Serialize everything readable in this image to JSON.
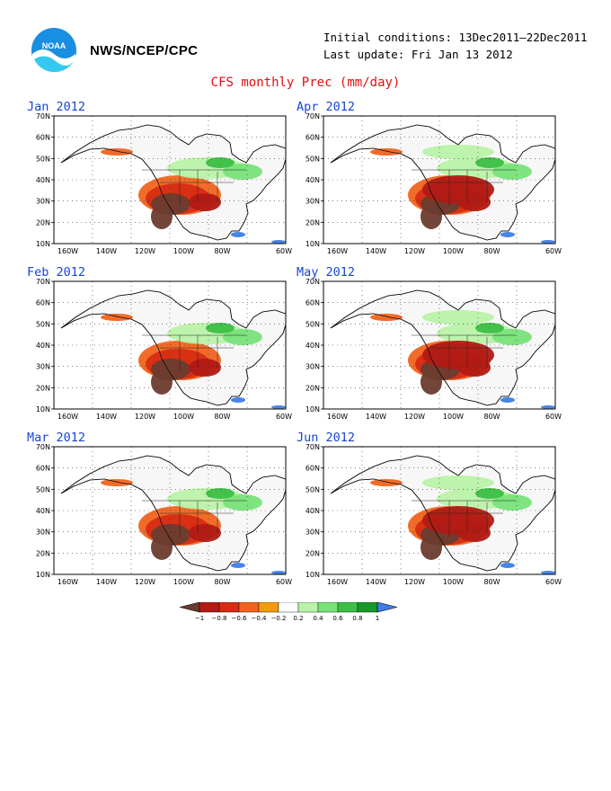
{
  "header": {
    "logo_icon": "noaa-logo-icon",
    "logo_text": "NOAA",
    "org": "NWS/NCEP/CPC",
    "initial_conditions": "Initial conditions: 13Dec2011–22Dec2011",
    "last_update": "Last update: Fri Jan 13 2012",
    "title": "CFS monthly Prec (mm/day)"
  },
  "axes": {
    "lat_labels": [
      "70N",
      "60N",
      "50N",
      "40N",
      "30N",
      "20N",
      "10N"
    ],
    "lon_labels": [
      "160W",
      "140W",
      "120W",
      "100W",
      "80W",
      "60W"
    ]
  },
  "panels": [
    {
      "title": "Jan 2012"
    },
    {
      "title": "Apr 2012"
    },
    {
      "title": "Feb 2012"
    },
    {
      "title": "May 2012"
    },
    {
      "title": "Mar 2012"
    },
    {
      "title": "Jun 2012"
    }
  ],
  "legend": {
    "labels": [
      "−1",
      "−0.8",
      "−0.6",
      "−0.4",
      "−0.2",
      "0.2",
      "0.4",
      "0.6",
      "0.8",
      "1"
    ],
    "colors": [
      "#6b3c2e",
      "#b21a14",
      "#d62c14",
      "#f0641e",
      "#f39c12",
      "#ffffff",
      "#b9f2a8",
      "#79e27a",
      "#3cbf46",
      "#16992a",
      "#3d7ee6"
    ]
  }
}
